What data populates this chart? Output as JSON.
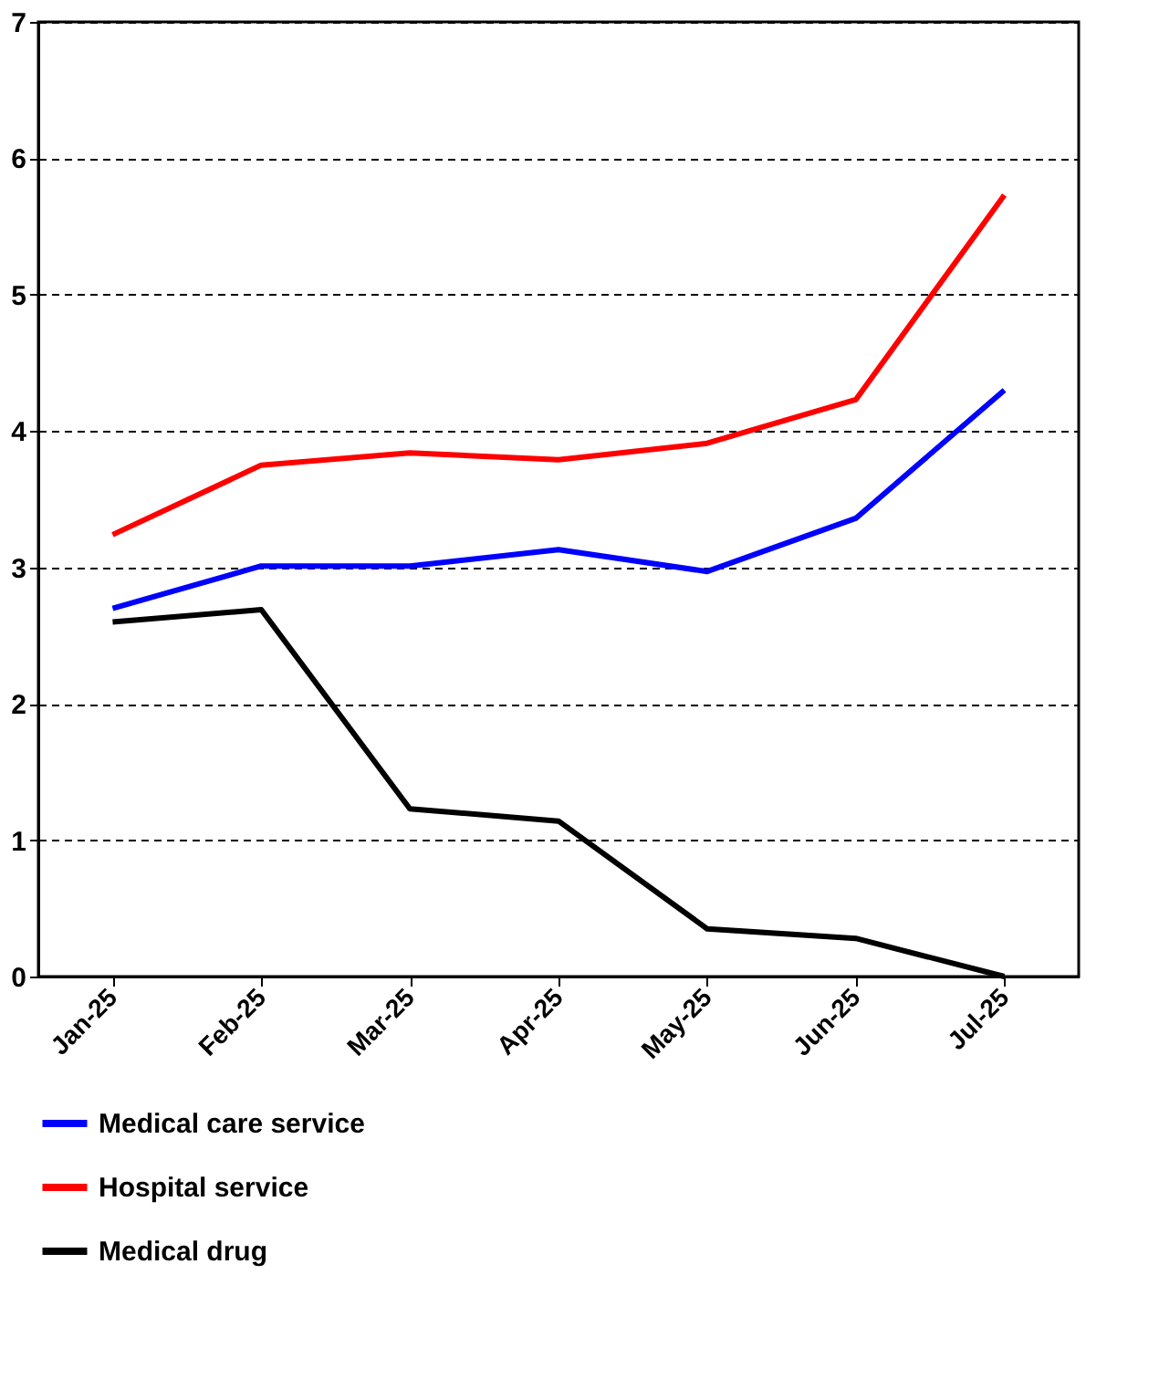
{
  "chart_data": {
    "type": "line",
    "categories": [
      "Jan-25",
      "Feb-25",
      "Mar-25",
      "Apr-25",
      "May-25",
      "Jun-25",
      "Jul-25"
    ],
    "series": [
      {
        "name": "Medical care service",
        "color": "#0000ff",
        "values": [
          2.7,
          3.01,
          3.01,
          3.13,
          2.97,
          3.36,
          4.3
        ]
      },
      {
        "name": "Hospital service",
        "color": "#ff0000",
        "values": [
          3.24,
          3.75,
          3.84,
          3.79,
          3.91,
          4.23,
          5.73
        ]
      },
      {
        "name": "Medical drug",
        "color": "#000000",
        "values": [
          2.6,
          2.69,
          1.23,
          1.14,
          0.35,
          0.28,
          0.0
        ]
      }
    ],
    "ylim": [
      0,
      7
    ],
    "yticks": [
      0,
      1,
      2,
      3,
      4,
      5,
      6,
      7
    ],
    "grid": "y",
    "legend": "bottom",
    "line_style": "solid",
    "marker": "none"
  }
}
